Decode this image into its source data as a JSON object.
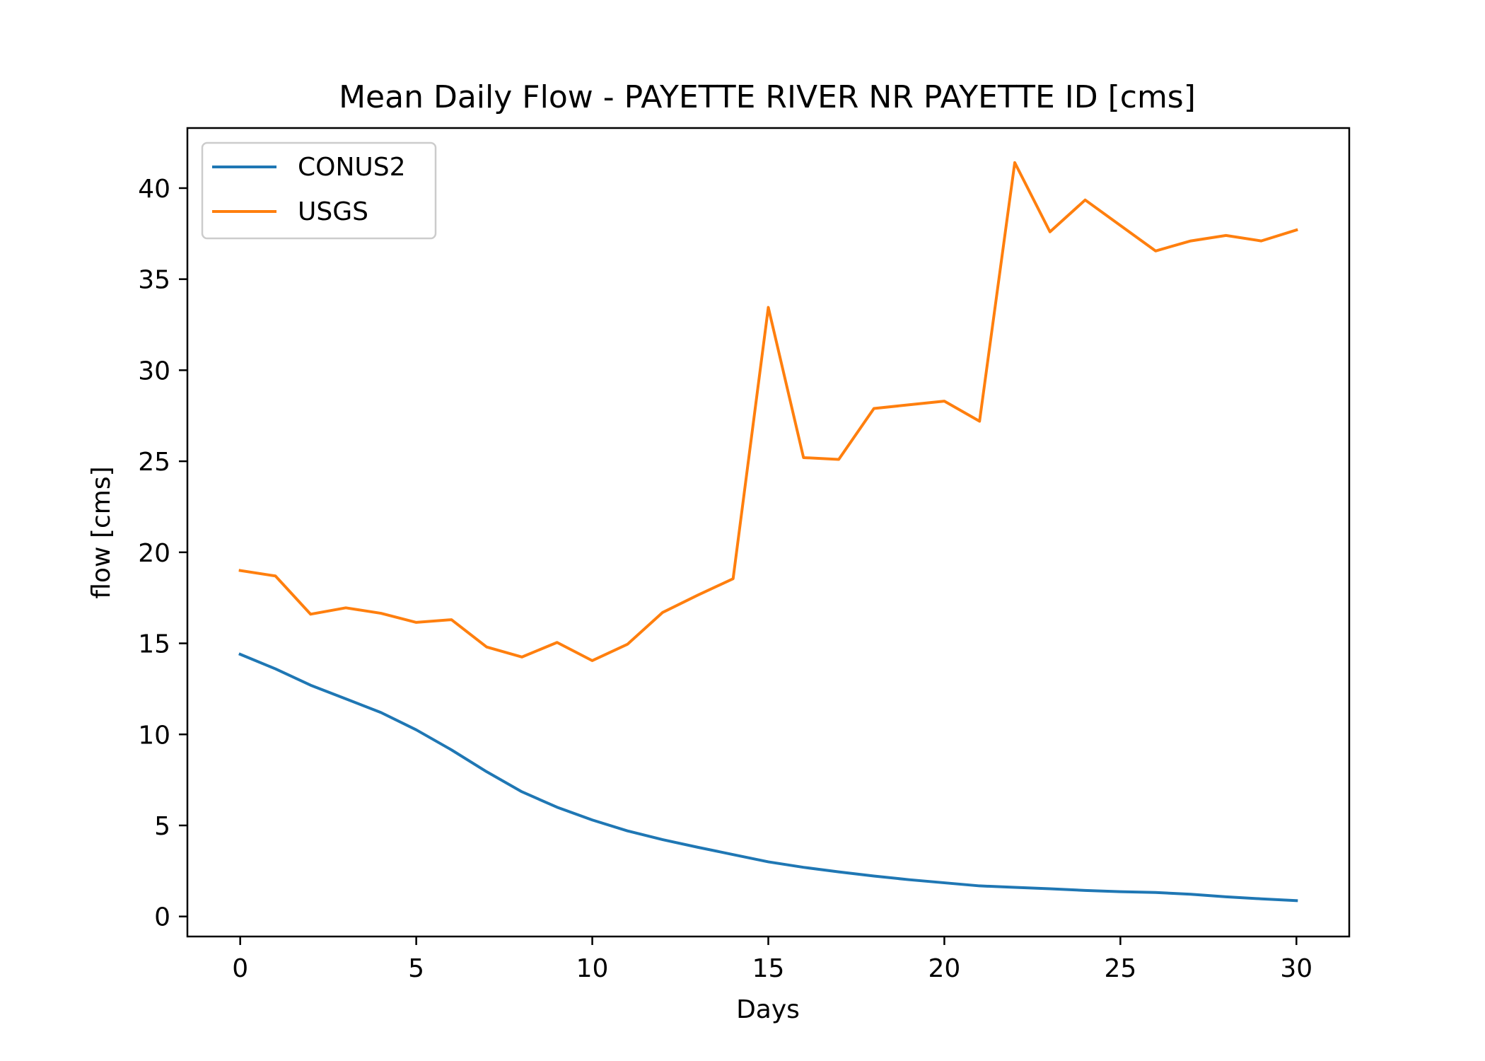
{
  "chart_data": {
    "type": "line",
    "title": "Mean Daily Flow - PAYETTE RIVER NR PAYETTE ID [cms]",
    "xlabel": "Days",
    "ylabel": "flow [cms]",
    "xlim": [
      -1.5,
      31.5
    ],
    "ylim": [
      -1.1,
      43.3
    ],
    "xticks": [
      0,
      5,
      10,
      15,
      20,
      25,
      30
    ],
    "yticks": [
      0,
      5,
      10,
      15,
      20,
      25,
      30,
      35,
      40
    ],
    "grid": false,
    "legend": "top-left",
    "x": [
      0,
      1,
      2,
      3,
      4,
      5,
      6,
      7,
      8,
      9,
      10,
      11,
      12,
      13,
      14,
      15,
      16,
      17,
      18,
      19,
      20,
      21,
      22,
      23,
      24,
      25,
      26,
      27,
      28,
      29,
      30
    ],
    "series": [
      {
        "name": "CONUS2",
        "color": "#1f77b4",
        "values": [
          14.4,
          13.6,
          12.7,
          11.95,
          11.2,
          10.25,
          9.15,
          7.95,
          6.85,
          6.0,
          5.3,
          4.7,
          4.22,
          3.8,
          3.4,
          3.0,
          2.7,
          2.45,
          2.22,
          2.02,
          1.85,
          1.68,
          1.6,
          1.52,
          1.43,
          1.36,
          1.32,
          1.22,
          1.08,
          0.97,
          0.87
        ]
      },
      {
        "name": "USGS",
        "color": "#ff7f0e",
        "values": [
          19.0,
          18.7,
          16.6,
          16.95,
          16.65,
          16.15,
          16.3,
          14.8,
          14.25,
          15.05,
          14.05,
          14.95,
          16.7,
          17.65,
          18.55,
          33.45,
          25.2,
          25.1,
          27.9,
          28.1,
          28.3,
          27.2,
          41.4,
          37.6,
          39.35,
          37.95,
          36.55,
          37.1,
          37.4,
          37.1,
          37.7
        ]
      }
    ]
  }
}
